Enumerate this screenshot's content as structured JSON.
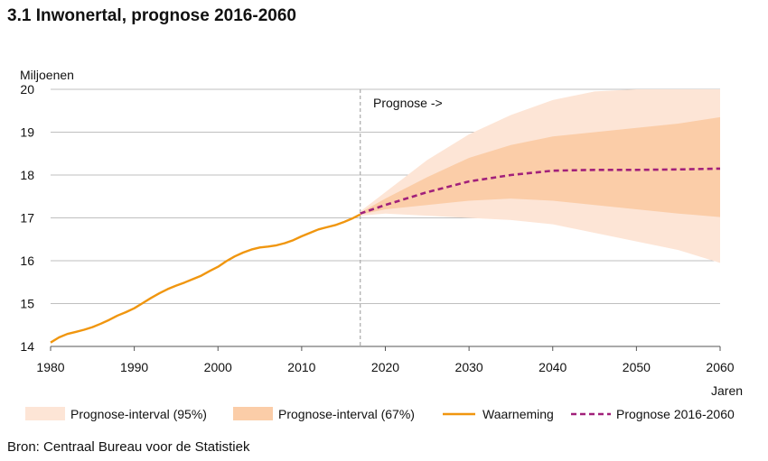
{
  "title": "3.1 Inwonertal, prognose 2016-2060",
  "source": "Bron: Centraal Bureau voor de Statistiek",
  "chart_data": {
    "type": "area",
    "ylabel": "Miljoenen",
    "xlabel": "Jaren",
    "xlim": [
      1980,
      2060
    ],
    "ylim": [
      14,
      20
    ],
    "x_ticks": [
      1980,
      1990,
      2000,
      2010,
      2020,
      2030,
      2040,
      2050,
      2060
    ],
    "y_ticks": [
      14,
      15,
      16,
      17,
      18,
      19,
      20
    ],
    "annotation": "Prognose ->",
    "annotation_x": 2017,
    "colors": {
      "band95": "#fde5d6",
      "band67": "#fbcda8",
      "observed": "#f0960f",
      "forecast": "#a1207a",
      "grid": "#bfbfbf",
      "divider": "#aaaaaa"
    },
    "legend": [
      {
        "label": "Prognose-interval (95%)",
        "kind": "band95"
      },
      {
        "label": "Prognose-interval (67%)",
        "kind": "band67"
      },
      {
        "label": "Waarneming",
        "kind": "observed"
      },
      {
        "label": "Prognose 2016-2060",
        "kind": "forecast"
      }
    ],
    "observed": {
      "name": "Waarneming",
      "x": [
        1980,
        1981,
        1982,
        1983,
        1984,
        1985,
        1986,
        1987,
        1988,
        1989,
        1990,
        1991,
        1992,
        1993,
        1994,
        1995,
        1996,
        1997,
        1998,
        1999,
        2000,
        2001,
        2002,
        2003,
        2004,
        2005,
        2006,
        2007,
        2008,
        2009,
        2010,
        2011,
        2012,
        2013,
        2014,
        2015,
        2016,
        2017
      ],
      "y": [
        14.09,
        14.21,
        14.29,
        14.34,
        14.39,
        14.45,
        14.53,
        14.62,
        14.72,
        14.8,
        14.89,
        15.01,
        15.13,
        15.24,
        15.34,
        15.42,
        15.49,
        15.57,
        15.65,
        15.76,
        15.86,
        15.99,
        16.1,
        16.19,
        16.26,
        16.31,
        16.33,
        16.36,
        16.41,
        16.48,
        16.57,
        16.65,
        16.73,
        16.78,
        16.83,
        16.9,
        16.98,
        17.08
      ]
    },
    "forecast": {
      "name": "Prognose 2016-2060",
      "x": [
        2017,
        2020,
        2025,
        2030,
        2035,
        2040,
        2045,
        2050,
        2055,
        2060
      ],
      "y": [
        17.1,
        17.3,
        17.6,
        17.85,
        18.0,
        18.1,
        18.12,
        18.12,
        18.13,
        18.15
      ]
    },
    "interval_95": {
      "x": [
        2017,
        2020,
        2025,
        2030,
        2035,
        2040,
        2045,
        2050,
        2055,
        2060
      ],
      "upper": [
        17.15,
        17.6,
        18.35,
        18.95,
        19.4,
        19.75,
        19.95,
        20.0,
        20.0,
        20.0
      ],
      "lower": [
        17.05,
        17.1,
        17.05,
        17.0,
        16.95,
        16.85,
        16.65,
        16.45,
        16.25,
        15.95
      ]
    },
    "interval_67": {
      "x": [
        2017,
        2020,
        2025,
        2030,
        2035,
        2040,
        2045,
        2050,
        2055,
        2060
      ],
      "upper": [
        17.12,
        17.45,
        17.95,
        18.4,
        18.7,
        18.9,
        19.0,
        19.1,
        19.2,
        19.35
      ],
      "lower": [
        17.08,
        17.2,
        17.3,
        17.4,
        17.45,
        17.4,
        17.3,
        17.2,
        17.1,
        17.02
      ]
    }
  }
}
